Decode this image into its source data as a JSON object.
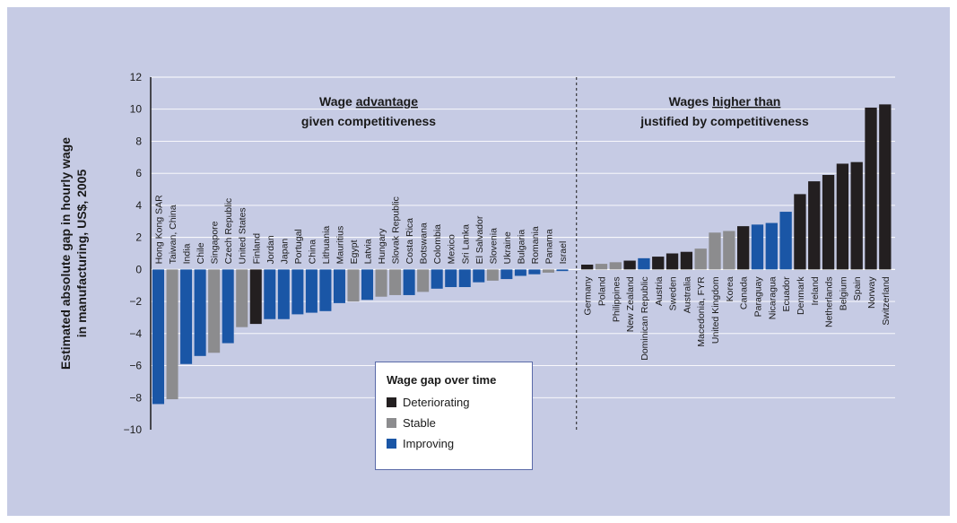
{
  "chart_data": {
    "type": "bar",
    "ylabel": "Estimated absolute gap in hourly wage in manufacturing, US$, 2005",
    "ylim": [
      -10,
      12
    ],
    "yticks": [
      12,
      10,
      8,
      6,
      4,
      2,
      0,
      -2,
      -4,
      -6,
      -8,
      -10
    ],
    "grid": true,
    "colors": {
      "deteriorating": "#231f20",
      "stable": "#8c8c8e",
      "improving": "#1a56a6"
    },
    "annotations": {
      "left_line1_pre": "Wage ",
      "left_line1_ul": "advantage",
      "left_line2": "given competitiveness",
      "right_line1_pre": "Wages ",
      "right_line1_ul": "higher than",
      "right_line2": "justified by competitiveness"
    },
    "legend": {
      "title": "Wage gap over time",
      "items": [
        {
          "key": "deteriorating",
          "label": "Deteriorating"
        },
        {
          "key": "stable",
          "label": "Stable"
        },
        {
          "key": "improving",
          "label": "Improving"
        }
      ]
    },
    "bars": [
      {
        "label": "Hong Kong SAR",
        "value": -8.4,
        "status": "improving"
      },
      {
        "label": "Taiwan, China",
        "value": -8.1,
        "status": "stable"
      },
      {
        "label": "India",
        "value": -5.9,
        "status": "improving"
      },
      {
        "label": "Chile",
        "value": -5.4,
        "status": "improving"
      },
      {
        "label": "Singapore",
        "value": -5.2,
        "status": "stable"
      },
      {
        "label": "Czech Republic",
        "value": -4.6,
        "status": "improving"
      },
      {
        "label": "United States",
        "value": -3.6,
        "status": "stable"
      },
      {
        "label": "Finland",
        "value": -3.4,
        "status": "deteriorating"
      },
      {
        "label": "Jordan",
        "value": -3.1,
        "status": "improving"
      },
      {
        "label": "Japan",
        "value": -3.1,
        "status": "improving"
      },
      {
        "label": "Portugal",
        "value": -2.8,
        "status": "improving"
      },
      {
        "label": "China",
        "value": -2.7,
        "status": "improving"
      },
      {
        "label": "Lithuania",
        "value": -2.6,
        "status": "improving"
      },
      {
        "label": "Mauritius",
        "value": -2.1,
        "status": "improving"
      },
      {
        "label": "Egypt",
        "value": -2.0,
        "status": "stable"
      },
      {
        "label": "Latvia",
        "value": -1.9,
        "status": "improving"
      },
      {
        "label": "Hungary",
        "value": -1.7,
        "status": "stable"
      },
      {
        "label": "Slovak Republic",
        "value": -1.6,
        "status": "stable"
      },
      {
        "label": "Costa Rica",
        "value": -1.6,
        "status": "improving"
      },
      {
        "label": "Botswana",
        "value": -1.4,
        "status": "stable"
      },
      {
        "label": "Colombia",
        "value": -1.2,
        "status": "improving"
      },
      {
        "label": "Mexico",
        "value": -1.1,
        "status": "improving"
      },
      {
        "label": "Sri Lanka",
        "value": -1.1,
        "status": "improving"
      },
      {
        "label": "El Salvador",
        "value": -0.8,
        "status": "improving"
      },
      {
        "label": "Slovenia",
        "value": -0.7,
        "status": "stable"
      },
      {
        "label": "Ukraine",
        "value": -0.6,
        "status": "improving"
      },
      {
        "label": "Bulgaria",
        "value": -0.4,
        "status": "improving"
      },
      {
        "label": "Romania",
        "value": -0.3,
        "status": "improving"
      },
      {
        "label": "Panama",
        "value": -0.2,
        "status": "stable"
      },
      {
        "label": "Israel",
        "value": -0.1,
        "status": "improving"
      },
      {
        "label": "Germany",
        "value": 0.3,
        "status": "deteriorating"
      },
      {
        "label": "Poland",
        "value": 0.35,
        "status": "stable"
      },
      {
        "label": "Philippines",
        "value": 0.45,
        "status": "stable"
      },
      {
        "label": "New Zealand",
        "value": 0.55,
        "status": "deteriorating"
      },
      {
        "label": "Dominican Republic",
        "value": 0.7,
        "status": "improving"
      },
      {
        "label": "Austria",
        "value": 0.8,
        "status": "deteriorating"
      },
      {
        "label": "Sweden",
        "value": 1.0,
        "status": "deteriorating"
      },
      {
        "label": "Australia",
        "value": 1.1,
        "status": "deteriorating"
      },
      {
        "label": "Macedonia, FYR",
        "value": 1.3,
        "status": "stable"
      },
      {
        "label": "United Kingdom",
        "value": 2.3,
        "status": "stable"
      },
      {
        "label": "Korea",
        "value": 2.4,
        "status": "stable"
      },
      {
        "label": "Canada",
        "value": 2.7,
        "status": "deteriorating"
      },
      {
        "label": "Paraguay",
        "value": 2.8,
        "status": "improving"
      },
      {
        "label": "Nicaragua",
        "value": 2.9,
        "status": "improving"
      },
      {
        "label": "Ecuador",
        "value": 3.6,
        "status": "improving"
      },
      {
        "label": "Denmark",
        "value": 4.7,
        "status": "deteriorating"
      },
      {
        "label": "Ireland",
        "value": 5.5,
        "status": "deteriorating"
      },
      {
        "label": "Netherlands",
        "value": 5.9,
        "status": "deteriorating"
      },
      {
        "label": "Belgium",
        "value": 6.6,
        "status": "deteriorating"
      },
      {
        "label": "Spain",
        "value": 6.7,
        "status": "deteriorating"
      },
      {
        "label": "Norway",
        "value": 10.1,
        "status": "deteriorating"
      },
      {
        "label": "Switzerland",
        "value": 10.3,
        "status": "deteriorating"
      }
    ]
  }
}
